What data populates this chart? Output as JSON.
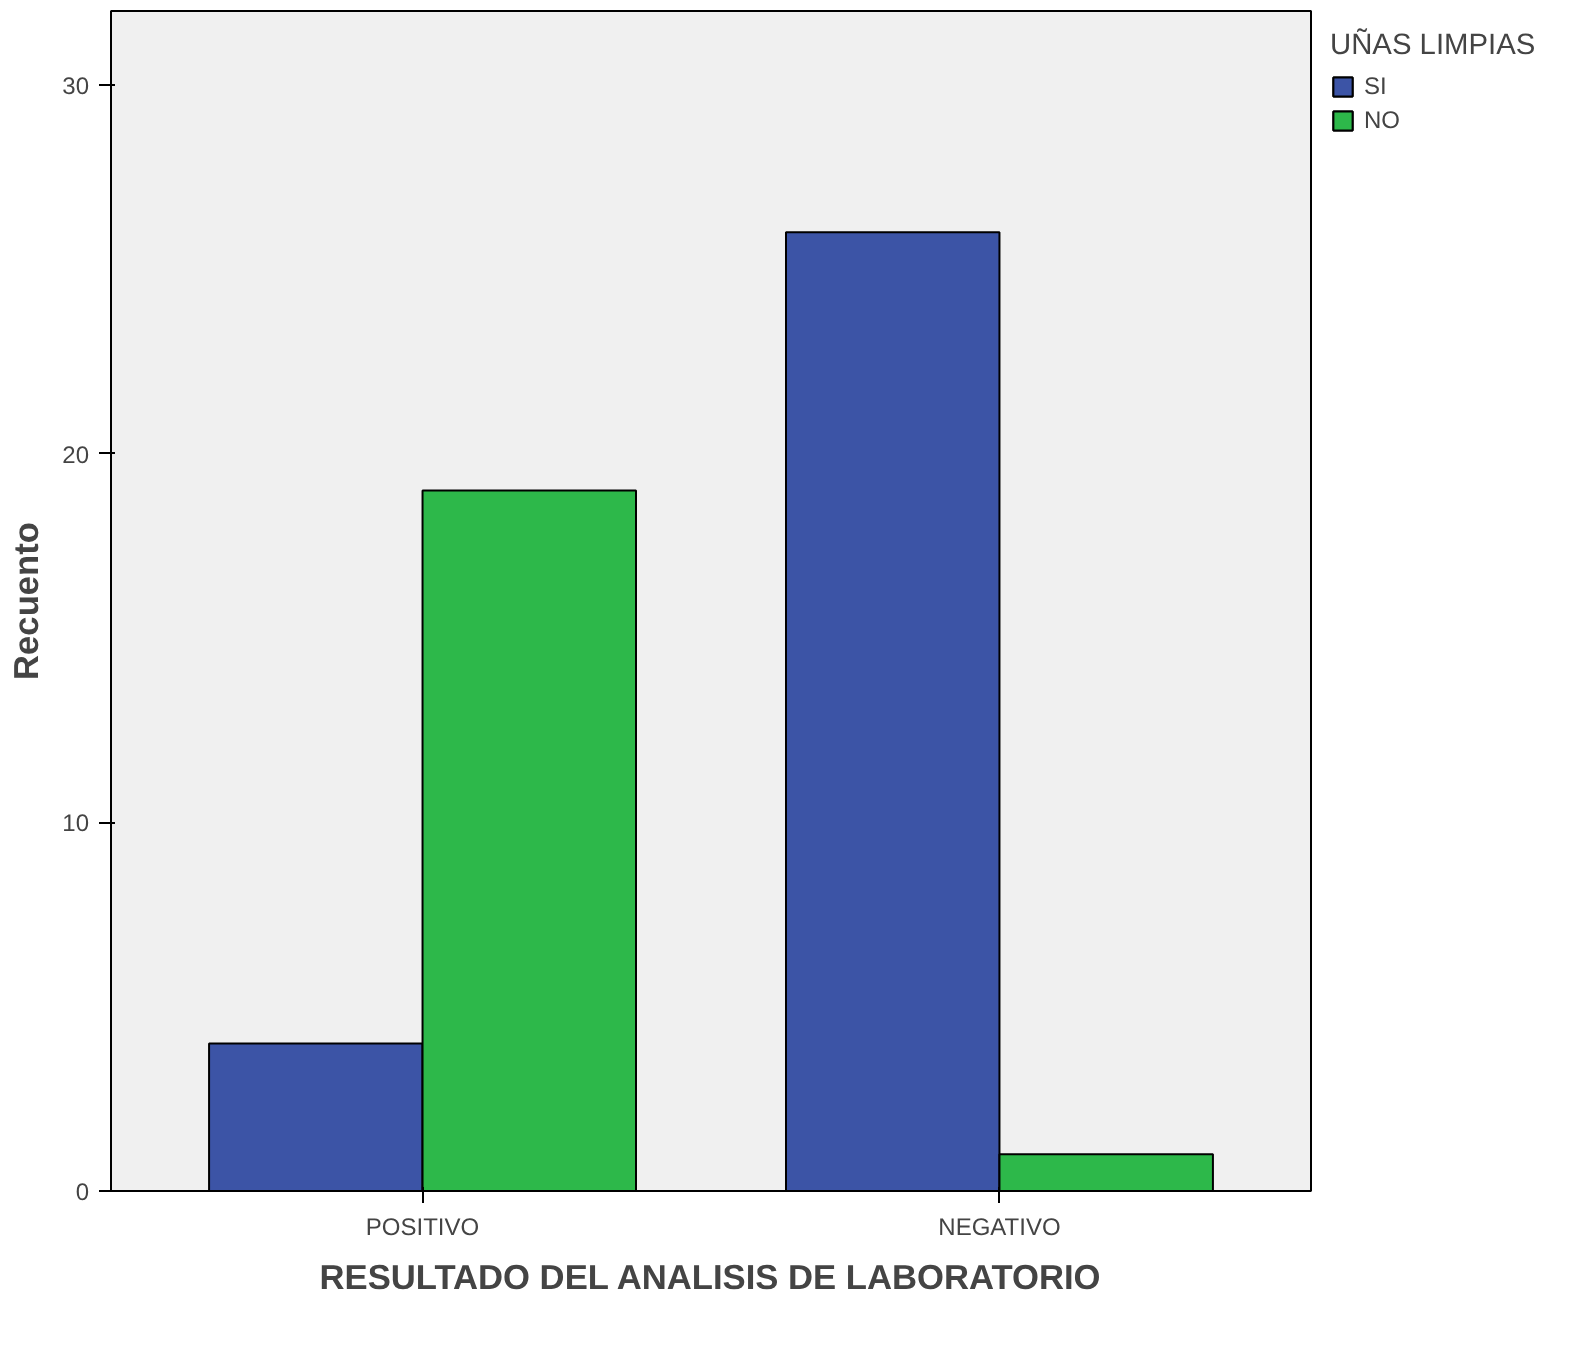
{
  "chart_data": {
    "type": "bar",
    "xlabel": "RESULTADO DEL ANALISIS DE LABORATORIO",
    "ylabel": "Recuento",
    "legend_title": "UÑAS LIMPIAS",
    "categories": [
      "POSITIVO",
      "NEGATIVO"
    ],
    "series": [
      {
        "name": "SI",
        "color": "#3c54a6",
        "values": [
          4,
          26
        ]
      },
      {
        "name": "NO",
        "color": "#2db84a",
        "values": [
          19,
          1
        ]
      }
    ],
    "ylim": [
      0,
      32
    ],
    "yticks": [
      0,
      10,
      20,
      30
    ],
    "grid": false,
    "legend": "top right"
  }
}
